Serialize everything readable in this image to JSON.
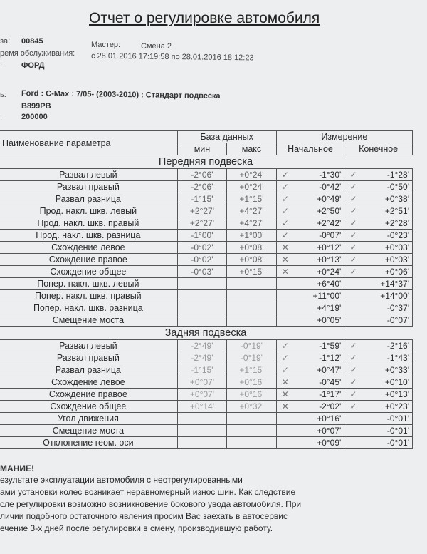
{
  "title": "Отчет о регулировке автомобиля",
  "header": {
    "order_label": "за:",
    "order": "00845",
    "master_label": "Мастер:",
    "master": "Смена 2",
    "time_label": "ремя обслуживания:",
    "time": "с 28.01.2016 17:19:58 по 28.01.2016 18:12:23",
    "brand_label": ":",
    "brand": "ФОРД",
    "model_label": "ь:",
    "model": "Ford : C-Max : 7/05- (2003-2010) : Стандарт подвеска",
    "plate": "В899РВ",
    "mileage_label": ":",
    "mileage": "200000"
  },
  "table": {
    "col_name": "Наименование параметра",
    "col_db": "База данных",
    "col_min": "мин",
    "col_max": "макс",
    "col_meas": "Измерение",
    "col_init": "Начальное",
    "col_final": "Конечное",
    "front_title": "Передняя подвеска",
    "front": [
      [
        "Развал левый",
        "-2°06'",
        "+0°24'",
        "✓",
        "-1°30'",
        "✓",
        "-1°28'"
      ],
      [
        "Развал правый",
        "-2°06'",
        "+0°24'",
        "✓",
        "-0°42'",
        "✓",
        "-0°50'"
      ],
      [
        "Развал разница",
        "-1°15'",
        "+1°15'",
        "✓",
        "+0°49'",
        "✓",
        "+0°38'"
      ],
      [
        "Прод. накл. шкв. левый",
        "+2°27'",
        "+4°27'",
        "✓",
        "+2°50'",
        "✓",
        "+2°51'"
      ],
      [
        "Прод. накл. шкв. правый",
        "+2°27'",
        "+4°27'",
        "✓",
        "+2°42'",
        "✓",
        "+2°28'"
      ],
      [
        "Прод. накл. шкв. разница",
        "-1°00'",
        "+1°00'",
        "✓",
        "-0°07'",
        "✓",
        "-0°23'"
      ],
      [
        "Схождение левое",
        "-0°02'",
        "+0°08'",
        "✕",
        "+0°12'",
        "✓",
        "+0°03'"
      ],
      [
        "Схождение правое",
        "-0°02'",
        "+0°08'",
        "✕",
        "+0°13'",
        "✓",
        "+0°03'"
      ],
      [
        "Схождение общее",
        "-0°03'",
        "+0°15'",
        "✕",
        "+0°24'",
        "✓",
        "+0°06'"
      ],
      [
        "Попер. накл. шкв. левый",
        "",
        "",
        "",
        "+6°40'",
        "",
        "+14°37'"
      ],
      [
        "Попер. накл. шкв. правый",
        "",
        "",
        "",
        "+11°00'",
        "",
        "+14°00'"
      ],
      [
        "Попер. накл. шкв. разница",
        "",
        "",
        "",
        "+4°19'",
        "",
        "-0°37'"
      ],
      [
        "Смещение моста",
        "",
        "",
        "",
        "+0°05'",
        "",
        "-0°07'"
      ]
    ],
    "rear_title": "Задняя подвеска",
    "rear": [
      [
        "Развал левый",
        "-2°49'",
        "-0°19'",
        "✓",
        "-1°59'",
        "✓",
        "-2°16'"
      ],
      [
        "Развал правый",
        "-2°49'",
        "-0°19'",
        "✓",
        "-1°12'",
        "✓",
        "-1°43'"
      ],
      [
        "Развал разница",
        "-1°15'",
        "+1°15'",
        "✓",
        "+0°47'",
        "✓",
        "+0°33'"
      ],
      [
        "Схождение левое",
        "+0°07'",
        "+0°16'",
        "✕",
        "-0°45'",
        "✓",
        "+0°10'"
      ],
      [
        "Схождение правое",
        "+0°07'",
        "+0°16'",
        "✕",
        "-1°17'",
        "✓",
        "+0°13'"
      ],
      [
        "Схождение общее",
        "+0°14'",
        "+0°32'",
        "✕",
        "-2°02'",
        "✓",
        "+0°23'"
      ],
      [
        "Угол движения",
        "",
        "",
        "",
        "+0°16'",
        "",
        "-0°01'"
      ],
      [
        "Смещение моста",
        "",
        "",
        "",
        "+0°07'",
        "",
        "-0°01'"
      ],
      [
        "Отклонение геом. оси",
        "",
        "",
        "",
        "+0°09'",
        "",
        "-0°01'"
      ]
    ]
  },
  "warning": {
    "title": "МАНИЕ!",
    "text": "езультате эксплуатации автомобиля с неотрегулированными\nами установки колес возникает неравномерный износ шин. Как следствие\nсле регулировки возможно возникновение бокового увода автомобиля. При\nличии подобного остаточного явления просим Вас заехать в автосервис\nечение 3-х дней после регулировки в смену, производившую работу."
  }
}
